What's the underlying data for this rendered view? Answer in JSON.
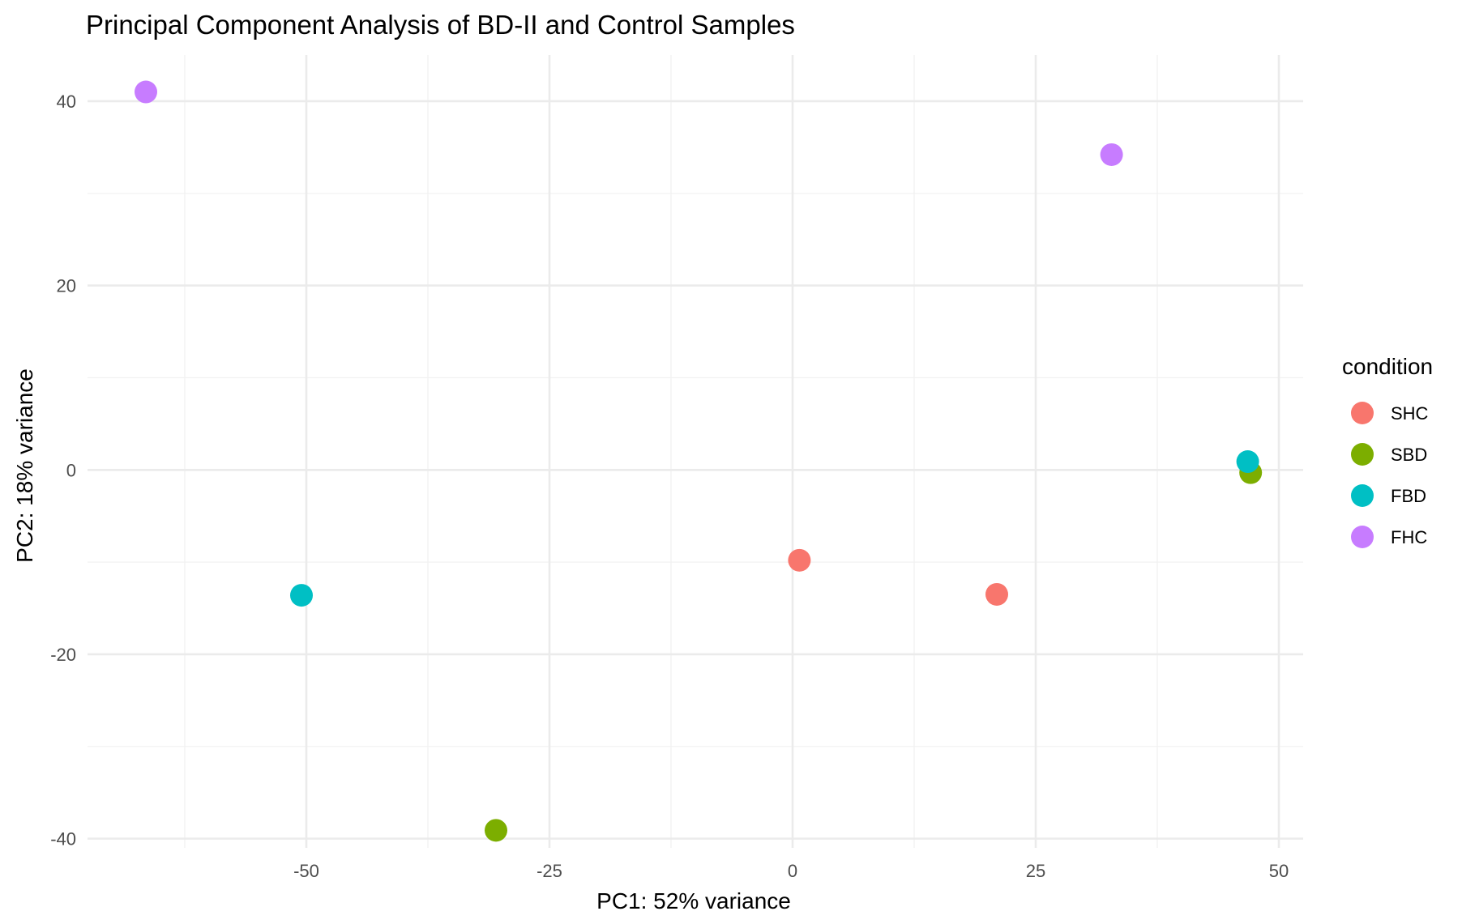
{
  "chart_data": {
    "type": "scatter",
    "title": "Principal Component Analysis of BD-II and Control Samples",
    "xlabel": "PC1: 52% variance",
    "ylabel": "PC2: 18% variance",
    "xlim": [
      -72.5,
      52.5
    ],
    "ylim": [
      -41,
      45
    ],
    "x_ticks": [
      -50,
      -25,
      0,
      25,
      50
    ],
    "y_ticks": [
      -40,
      -20,
      0,
      20,
      40
    ],
    "x_tick_labels": [
      "-50",
      "-25",
      "0",
      "25",
      "50"
    ],
    "y_tick_labels": [
      "-40",
      "-20",
      "0",
      "20",
      "40"
    ],
    "x_minor_ticks": [
      -62.5,
      -37.5,
      -12.5,
      12.5,
      37.5
    ],
    "y_minor_ticks": [
      -30,
      -10,
      10,
      30
    ],
    "grid": true,
    "legend": {
      "title": "condition",
      "position": "right"
    },
    "series": [
      {
        "name": "SHC",
        "color": "#F8766D",
        "points": [
          {
            "x": 0.7,
            "y": -9.8
          },
          {
            "x": 21.0,
            "y": -13.5
          }
        ]
      },
      {
        "name": "SBD",
        "color": "#7CAE00",
        "points": [
          {
            "x": -30.5,
            "y": -39.1
          },
          {
            "x": 47.1,
            "y": -0.3
          }
        ]
      },
      {
        "name": "FBD",
        "color": "#00BFC4",
        "points": [
          {
            "x": -50.5,
            "y": -13.6
          },
          {
            "x": 46.8,
            "y": 0.9
          }
        ]
      },
      {
        "name": "FHC",
        "color": "#C77CFF",
        "points": [
          {
            "x": -66.5,
            "y": 41.0
          },
          {
            "x": 32.8,
            "y": 34.2
          }
        ]
      }
    ]
  }
}
